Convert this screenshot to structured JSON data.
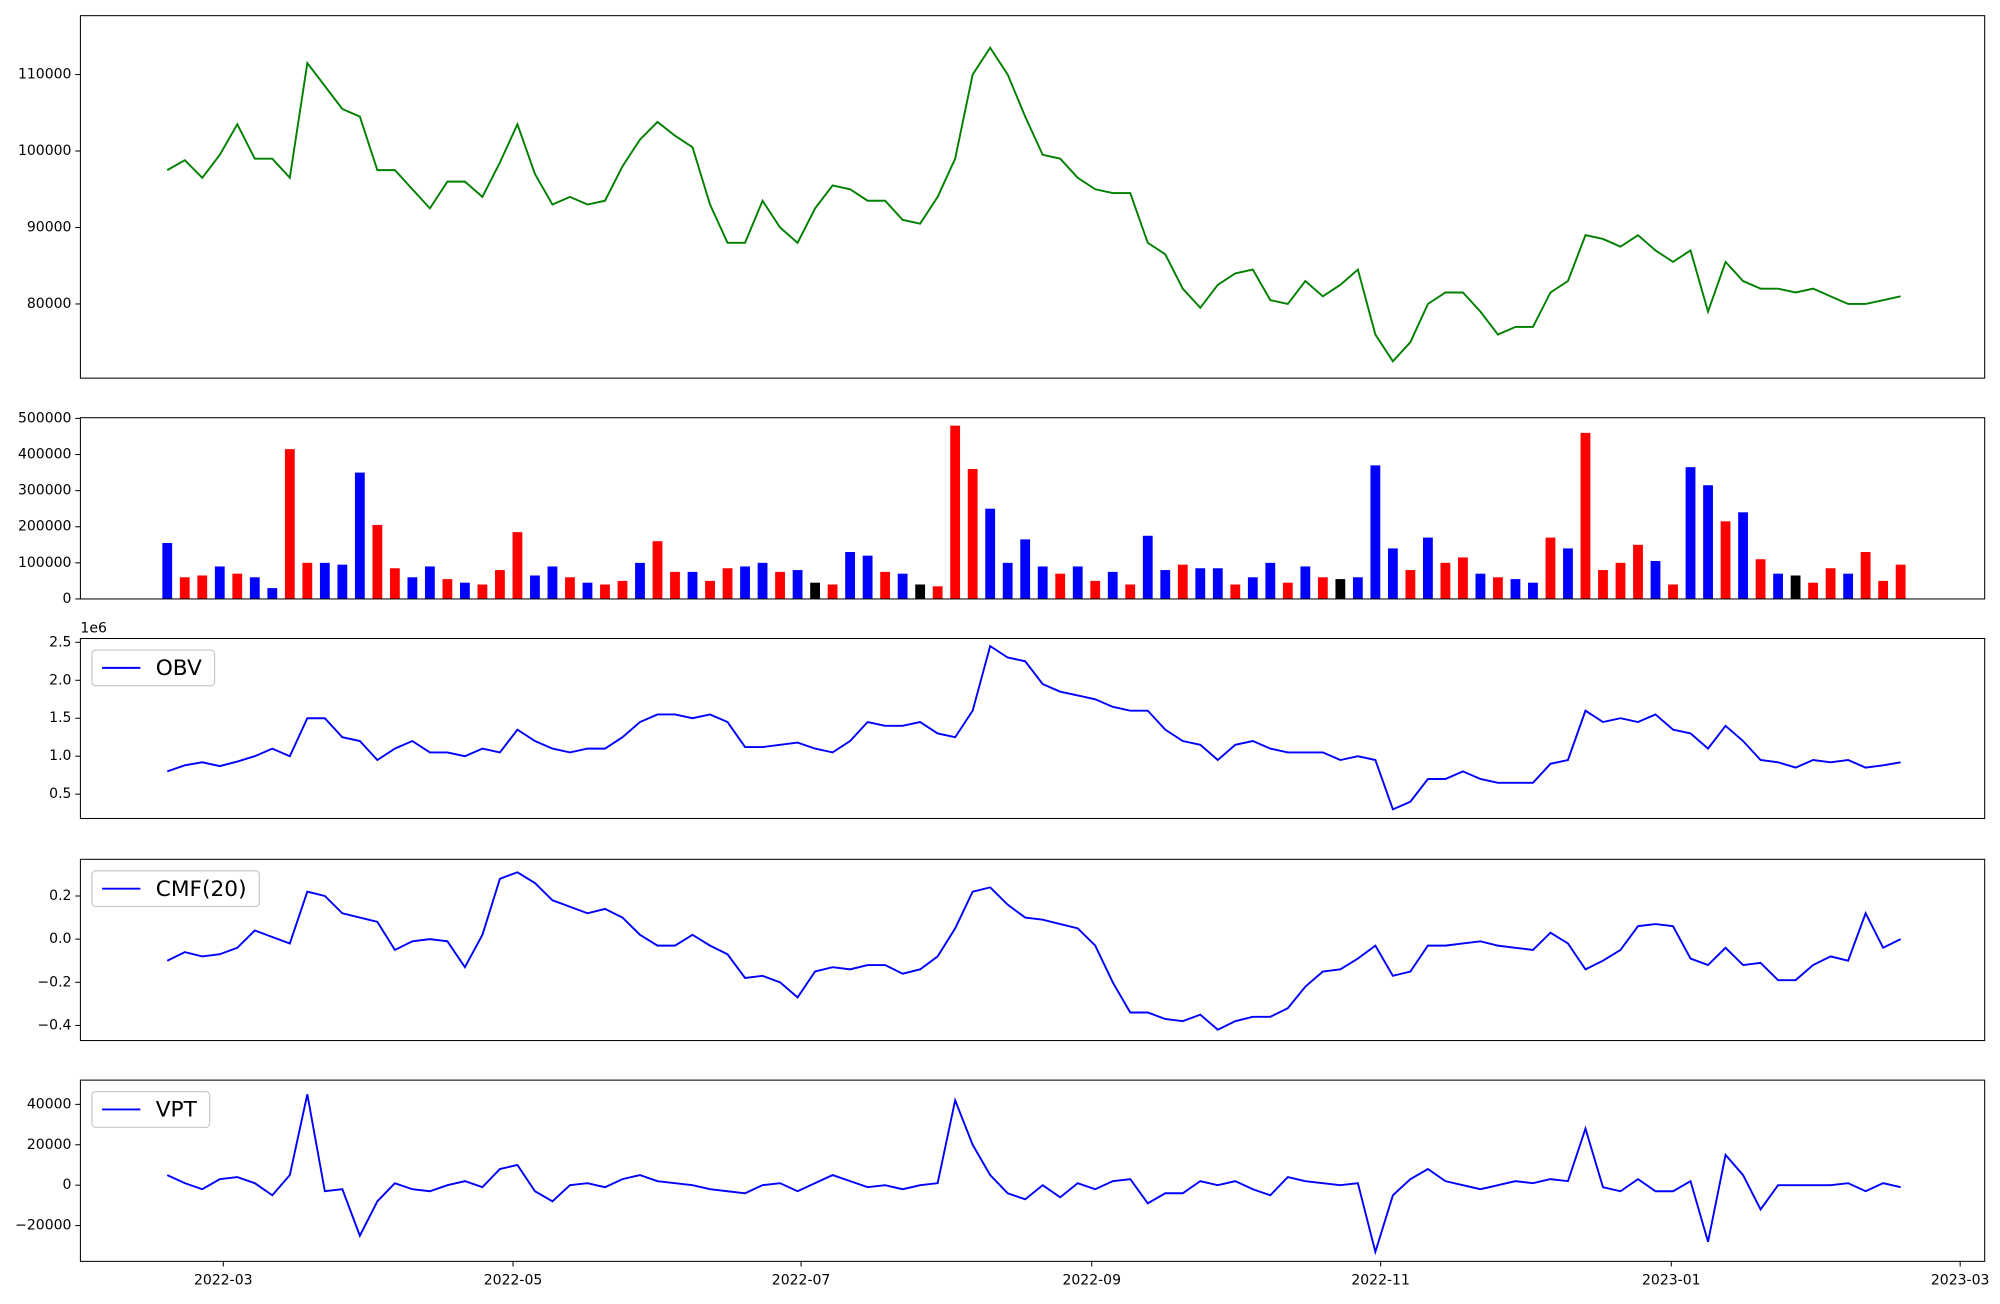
{
  "chart_data": [
    {
      "type": "line",
      "xlim": [
        -4.96,
        103.8
      ],
      "ylim": [
        70300,
        117700
      ],
      "yticks": [
        80000,
        90000,
        100000,
        110000
      ],
      "series": [
        {
          "color": "#008000",
          "values": [
            97500,
            98800,
            96500,
            99500,
            103500,
            99000,
            99000,
            96500,
            111500,
            108500,
            105500,
            104500,
            97500,
            97500,
            95000,
            92500,
            96000,
            96000,
            94000,
            98500,
            103500,
            97000,
            93000,
            94000,
            93000,
            93500,
            98000,
            101500,
            103800,
            102000,
            100500,
            93000,
            88000,
            88000,
            93500,
            90000,
            88000,
            92500,
            95500,
            95000,
            93500,
            93500,
            91000,
            90500,
            94000,
            99000,
            110000,
            113500,
            110000,
            104500,
            99500,
            99000,
            96500,
            95000,
            94500,
            94500,
            88000,
            86500,
            82000,
            79500,
            82500,
            84000,
            84500,
            80500,
            80000,
            83000,
            81000,
            82500,
            84500,
            76000,
            72500,
            75000,
            80000,
            81500,
            81500,
            79000,
            76000,
            77000,
            77000,
            81500,
            83000,
            89000,
            88500,
            87500,
            89000,
            87000,
            85500,
            87000,
            79000,
            85500,
            83000,
            82000,
            82000,
            81500,
            82000,
            81000,
            80000,
            80000,
            80500,
            81000
          ]
        }
      ]
    },
    {
      "type": "bar",
      "xlim": [
        -4.96,
        103.8
      ],
      "ylim": [
        0,
        502000
      ],
      "yticks": [
        0,
        100000,
        200000,
        300000,
        400000,
        500000
      ],
      "values": [
        155000,
        60000,
        65000,
        90000,
        70000,
        60000,
        30000,
        415000,
        100000,
        100000,
        95000,
        350000,
        205000,
        85000,
        60000,
        90000,
        55000,
        45000,
        40000,
        80000,
        185000,
        65000,
        90000,
        60000,
        45000,
        40000,
        50000,
        100000,
        160000,
        75000,
        75000,
        50000,
        85000,
        90000,
        100000,
        75000,
        80000,
        45000,
        40000,
        130000,
        120000,
        75000,
        70000,
        40000,
        35000,
        480000,
        360000,
        250000,
        100000,
        165000,
        90000,
        70000,
        90000,
        50000,
        75000,
        40000,
        175000,
        80000,
        95000,
        85000,
        85000,
        40000,
        60000,
        100000,
        45000,
        90000,
        60000,
        55000,
        60000,
        370000,
        140000,
        80000,
        170000,
        100000,
        115000,
        70000,
        60000,
        55000,
        45000,
        170000,
        140000,
        460000,
        80000,
        100000,
        150000,
        105000,
        40000,
        365000,
        315000,
        215000,
        240000,
        110000,
        70000,
        65000,
        45000,
        85000,
        70000,
        130000,
        50000,
        95000
      ],
      "colors": [
        "blue",
        "red",
        "red",
        "blue",
        "red",
        "blue",
        "blue",
        "red",
        "red",
        "blue",
        "blue",
        "blue",
        "red",
        "red",
        "blue",
        "blue",
        "red",
        "blue",
        "red",
        "red",
        "red",
        "blue",
        "blue",
        "red",
        "blue",
        "red",
        "red",
        "blue",
        "red",
        "red",
        "blue",
        "red",
        "red",
        "blue",
        "blue",
        "red",
        "blue",
        "black",
        "red",
        "blue",
        "blue",
        "red",
        "blue",
        "black",
        "red",
        "red",
        "red",
        "blue",
        "blue",
        "blue",
        "blue",
        "red",
        "blue",
        "red",
        "blue",
        "red",
        "blue",
        "blue",
        "red",
        "blue",
        "blue",
        "red",
        "blue",
        "blue",
        "red",
        "blue",
        "red",
        "black",
        "blue",
        "blue",
        "blue",
        "red",
        "blue",
        "red",
        "red",
        "blue",
        "red",
        "blue",
        "blue",
        "red",
        "blue",
        "red",
        "red",
        "red",
        "red",
        "blue",
        "red",
        "blue",
        "blue",
        "red",
        "blue",
        "red",
        "blue",
        "black",
        "red",
        "red",
        "blue",
        "red",
        "red",
        "red"
      ]
    },
    {
      "type": "line",
      "xlim": [
        -4.96,
        103.8
      ],
      "ylim": [
        180000,
        2550000
      ],
      "offset_label": "1e6",
      "legend": "upper left",
      "yticks": [
        {
          "value": 500000,
          "label": "0.5"
        },
        {
          "value": 1000000,
          "label": "1.0"
        },
        {
          "value": 1500000,
          "label": "1.5"
        },
        {
          "value": 2000000,
          "label": "2.0"
        },
        {
          "value": 2500000,
          "label": "2.5"
        }
      ],
      "series": [
        {
          "name": "OBV",
          "color": "#0000ff",
          "values": [
            800000,
            880000,
            920000,
            870000,
            930000,
            1000000,
            1100000,
            1000000,
            1500000,
            1500000,
            1250000,
            1200000,
            950000,
            1100000,
            1200000,
            1050000,
            1050000,
            1000000,
            1100000,
            1050000,
            1350000,
            1200000,
            1100000,
            1050000,
            1100000,
            1100000,
            1250000,
            1450000,
            1550000,
            1550000,
            1500000,
            1550000,
            1450000,
            1120000,
            1120000,
            1150000,
            1180000,
            1100000,
            1050000,
            1200000,
            1450000,
            1400000,
            1400000,
            1450000,
            1300000,
            1250000,
            1600000,
            2450000,
            2300000,
            2250000,
            1950000,
            1850000,
            1800000,
            1750000,
            1650000,
            1600000,
            1600000,
            1350000,
            1200000,
            1150000,
            950000,
            1150000,
            1200000,
            1100000,
            1050000,
            1050000,
            1050000,
            950000,
            1000000,
            950000,
            300000,
            400000,
            700000,
            700000,
            800000,
            700000,
            650000,
            650000,
            650000,
            900000,
            950000,
            1600000,
            1450000,
            1500000,
            1450000,
            1550000,
            1350000,
            1300000,
            1100000,
            1400000,
            1200000,
            950000,
            920000,
            850000,
            950000,
            920000,
            950000,
            850000,
            880000,
            920000
          ]
        }
      ]
    },
    {
      "type": "line",
      "xlim": [
        -4.96,
        103.8
      ],
      "ylim": [
        -0.47,
        0.37
      ],
      "legend": "upper left",
      "yticks": [
        {
          "value": -0.4,
          "label": "−0.4"
        },
        {
          "value": -0.2,
          "label": "−0.2"
        },
        {
          "value": 0,
          "label": "0.0"
        },
        0.2
      ],
      "series": [
        {
          "name": "CMF(20)",
          "color": "#0000ff",
          "values": [
            -0.1,
            -0.06,
            -0.08,
            -0.07,
            -0.04,
            0.04,
            0.01,
            -0.02,
            0.22,
            0.2,
            0.12,
            0.1,
            0.08,
            -0.05,
            -0.01,
            0.0,
            -0.01,
            -0.13,
            0.02,
            0.28,
            0.31,
            0.26,
            0.18,
            0.15,
            0.12,
            0.14,
            0.1,
            0.02,
            -0.03,
            -0.03,
            0.02,
            -0.03,
            -0.07,
            -0.18,
            -0.17,
            -0.2,
            -0.27,
            -0.15,
            -0.13,
            -0.14,
            -0.12,
            -0.12,
            -0.16,
            -0.14,
            -0.08,
            0.05,
            0.22,
            0.24,
            0.16,
            0.1,
            0.09,
            0.07,
            0.05,
            -0.03,
            -0.2,
            -0.34,
            -0.34,
            -0.37,
            -0.38,
            -0.35,
            -0.42,
            -0.38,
            -0.36,
            -0.36,
            -0.32,
            -0.22,
            -0.15,
            -0.14,
            -0.09,
            -0.03,
            -0.17,
            -0.15,
            -0.03,
            -0.03,
            -0.02,
            -0.01,
            -0.03,
            -0.04,
            -0.05,
            0.03,
            -0.02,
            -0.14,
            -0.1,
            -0.05,
            0.06,
            0.07,
            0.06,
            -0.09,
            -0.12,
            -0.04,
            -0.12,
            -0.11,
            -0.19,
            -0.19,
            -0.12,
            -0.08,
            -0.1,
            0.12,
            -0.04,
            0.0
          ]
        }
      ]
    },
    {
      "type": "line",
      "xlim": [
        -4.96,
        103.8
      ],
      "ylim": [
        -37700,
        52000
      ],
      "legend": "upper left",
      "yticks": [
        {
          "value": -20000,
          "label": "−20000"
        },
        0,
        20000,
        40000
      ],
      "xticks": [
        {
          "value": 3.2,
          "label": "2022-03"
        },
        {
          "value": 19.75,
          "label": "2022-05"
        },
        {
          "value": 36.2,
          "label": "2022-07"
        },
        {
          "value": 52.8,
          "label": "2022-09"
        },
        {
          "value": 69.3,
          "label": "2022-11"
        },
        {
          "value": 85.9,
          "label": "2023-01"
        },
        {
          "value": 102.4,
          "label": "2023-03"
        }
      ],
      "series": [
        {
          "name": "VPT",
          "color": "#0000ff",
          "values": [
            5000,
            1000,
            -2000,
            3000,
            4000,
            1000,
            -5000,
            5000,
            45000,
            -3000,
            -2000,
            -25000,
            -8000,
            1000,
            -2000,
            -3000,
            0,
            2000,
            -1000,
            8000,
            10000,
            -3000,
            -8000,
            0,
            1000,
            -1000,
            3000,
            5000,
            2000,
            1000,
            0,
            -2000,
            -3000,
            -4000,
            0,
            1000,
            -3000,
            1000,
            5000,
            2000,
            -1000,
            0,
            -2000,
            0,
            1000,
            42000,
            20000,
            5000,
            -4000,
            -7000,
            0,
            -6000,
            1000,
            -2000,
            2000,
            3000,
            -9000,
            -4000,
            -4000,
            2000,
            0,
            2000,
            -2000,
            -5000,
            4000,
            2000,
            1000,
            0,
            1000,
            -33000,
            -5000,
            3000,
            8000,
            2000,
            0,
            -2000,
            0,
            2000,
            1000,
            3000,
            2000,
            28000,
            -1000,
            -3000,
            3000,
            -3000,
            -3000,
            2000,
            -28000,
            15000,
            5000,
            -12000,
            0,
            0,
            0,
            0,
            1000,
            -3000,
            1000,
            -1000
          ]
        }
      ]
    }
  ]
}
